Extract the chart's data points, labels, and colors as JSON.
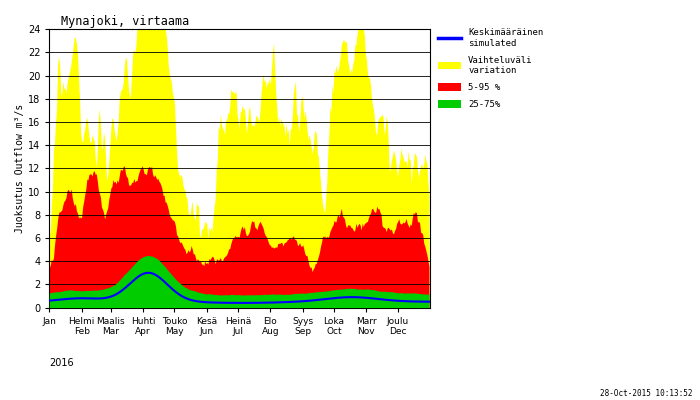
{
  "title": "Mynajoki, virtaama",
  "ylabel": "Juoksutus Outflow m³/s",
  "xlabel_bottom": "28-Oct-2015 10:13:52",
  "year_label": "2016",
  "ylim": [
    0,
    24
  ],
  "yticks": [
    0,
    2,
    4,
    6,
    8,
    10,
    12,
    14,
    16,
    18,
    20,
    22,
    24
  ],
  "x_month_labels": [
    "Jan",
    "Helmi\nFeb",
    "Maalis\nMar",
    "Huhti\nApr",
    "Touko\nMay",
    "Kesä\nJun",
    "Heinä\nJul",
    "Elo\nAug",
    "Syys\nSep",
    "Loka\nOct",
    "Marr\nNov",
    "Joulu\nDec"
  ],
  "legend_labels": [
    "Keskimääräinen\nsimulated",
    "Vaihteluväli\nvariation",
    "5-95 %",
    "25-75%"
  ],
  "legend_colors": [
    "#0000ff",
    "#ffff00",
    "#ff0000",
    "#00cc00"
  ],
  "bg_color": "#ffffff",
  "grid_color": "#000000",
  "n_days": 365,
  "month_days": [
    0,
    31,
    59,
    90,
    120,
    151,
    181,
    212,
    243,
    273,
    304,
    334
  ],
  "figsize": [
    7.0,
    4.0
  ],
  "dpi": 100
}
